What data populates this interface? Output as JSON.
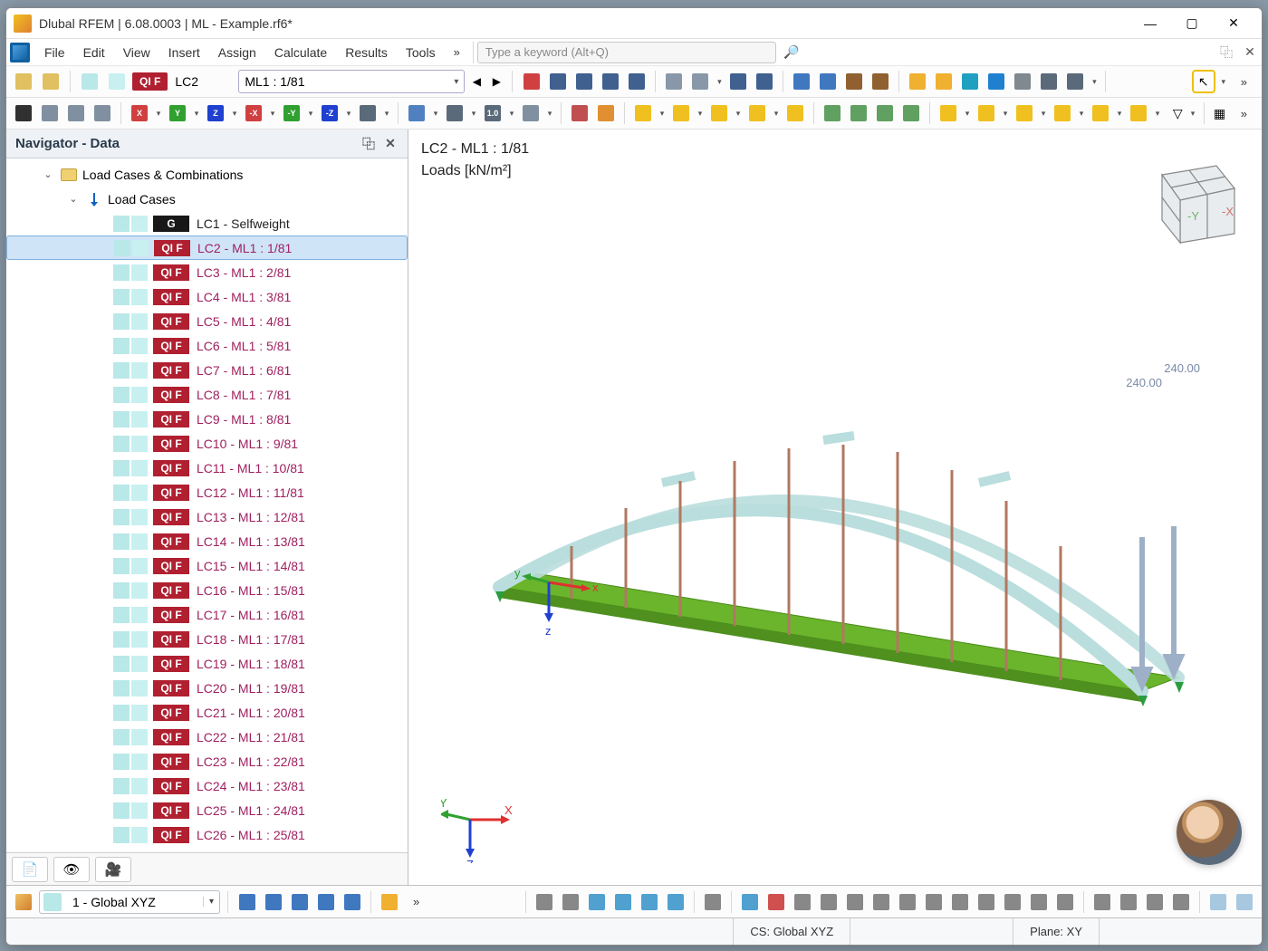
{
  "window": {
    "title": "Dlubal RFEM | 6.08.0003 | ML - Example.rf6*"
  },
  "menu": {
    "items": [
      "File",
      "Edit",
      "View",
      "Insert",
      "Assign",
      "Calculate",
      "Results",
      "Tools"
    ],
    "more": "»",
    "search_placeholder": "Type a keyword (Alt+Q)"
  },
  "toolbar1": {
    "lc_badge": "QI F",
    "lc_code": "LC2",
    "lc_name": "ML1 : 1/81"
  },
  "navigator": {
    "title": "Navigator - Data",
    "root": "Load Cases & Combinations",
    "sub": "Load Cases",
    "items": [
      {
        "badge": "G",
        "badge_class": "g",
        "label": "LC1 - Selfweight",
        "label_class": "g",
        "selected": false
      },
      {
        "badge": "QI F",
        "badge_class": "qi",
        "label": "LC2 - ML1 : 1/81",
        "label_class": "",
        "selected": true
      },
      {
        "badge": "QI F",
        "badge_class": "qi",
        "label": "LC3 - ML1 : 2/81",
        "label_class": "",
        "selected": false
      },
      {
        "badge": "QI F",
        "badge_class": "qi",
        "label": "LC4 - ML1 : 3/81",
        "label_class": "",
        "selected": false
      },
      {
        "badge": "QI F",
        "badge_class": "qi",
        "label": "LC5 - ML1 : 4/81",
        "label_class": "",
        "selected": false
      },
      {
        "badge": "QI F",
        "badge_class": "qi",
        "label": "LC6 - ML1 : 5/81",
        "label_class": "",
        "selected": false
      },
      {
        "badge": "QI F",
        "badge_class": "qi",
        "label": "LC7 - ML1 : 6/81",
        "label_class": "",
        "selected": false
      },
      {
        "badge": "QI F",
        "badge_class": "qi",
        "label": "LC8 - ML1 : 7/81",
        "label_class": "",
        "selected": false
      },
      {
        "badge": "QI F",
        "badge_class": "qi",
        "label": "LC9 - ML1 : 8/81",
        "label_class": "",
        "selected": false
      },
      {
        "badge": "QI F",
        "badge_class": "qi",
        "label": "LC10 - ML1 : 9/81",
        "label_class": "",
        "selected": false
      },
      {
        "badge": "QI F",
        "badge_class": "qi",
        "label": "LC11 - ML1 : 10/81",
        "label_class": "",
        "selected": false
      },
      {
        "badge": "QI F",
        "badge_class": "qi",
        "label": "LC12 - ML1 : 11/81",
        "label_class": "",
        "selected": false
      },
      {
        "badge": "QI F",
        "badge_class": "qi",
        "label": "LC13 - ML1 : 12/81",
        "label_class": "",
        "selected": false
      },
      {
        "badge": "QI F",
        "badge_class": "qi",
        "label": "LC14 - ML1 : 13/81",
        "label_class": "",
        "selected": false
      },
      {
        "badge": "QI F",
        "badge_class": "qi",
        "label": "LC15 - ML1 : 14/81",
        "label_class": "",
        "selected": false
      },
      {
        "badge": "QI F",
        "badge_class": "qi",
        "label": "LC16 - ML1 : 15/81",
        "label_class": "",
        "selected": false
      },
      {
        "badge": "QI F",
        "badge_class": "qi",
        "label": "LC17 - ML1 : 16/81",
        "label_class": "",
        "selected": false
      },
      {
        "badge": "QI F",
        "badge_class": "qi",
        "label": "LC18 - ML1 : 17/81",
        "label_class": "",
        "selected": false
      },
      {
        "badge": "QI F",
        "badge_class": "qi",
        "label": "LC19 - ML1 : 18/81",
        "label_class": "",
        "selected": false
      },
      {
        "badge": "QI F",
        "badge_class": "qi",
        "label": "LC20 - ML1 : 19/81",
        "label_class": "",
        "selected": false
      },
      {
        "badge": "QI F",
        "badge_class": "qi",
        "label": "LC21 - ML1 : 20/81",
        "label_class": "",
        "selected": false
      },
      {
        "badge": "QI F",
        "badge_class": "qi",
        "label": "LC22 - ML1 : 21/81",
        "label_class": "",
        "selected": false
      },
      {
        "badge": "QI F",
        "badge_class": "qi",
        "label": "LC23 - ML1 : 22/81",
        "label_class": "",
        "selected": false
      },
      {
        "badge": "QI F",
        "badge_class": "qi",
        "label": "LC24 - ML1 : 23/81",
        "label_class": "",
        "selected": false
      },
      {
        "badge": "QI F",
        "badge_class": "qi",
        "label": "LC25 - ML1 : 24/81",
        "label_class": "",
        "selected": false
      },
      {
        "badge": "QI F",
        "badge_class": "qi",
        "label": "LC26 - ML1 : 25/81",
        "label_class": "",
        "selected": false
      }
    ]
  },
  "viewport": {
    "header1": "LC2 - ML1 : 1/81",
    "header2": "Loads [kN/m²]",
    "load_value1": "240.00",
    "load_value2": "240.00",
    "axes": {
      "x": "X",
      "y": "Y",
      "z": "Z"
    },
    "local_axes": {
      "x": "x",
      "y": "y",
      "z": "z"
    },
    "cube_axes": {
      "x": "-X",
      "y": "-Y"
    },
    "bridge": {
      "deck_color": "#6ab52b",
      "arch_color": "#b9dedd",
      "hanger_color": "#b07860",
      "support_color": "#2a9d3e",
      "load_arrow_color": "#9eb0c8"
    }
  },
  "bottom": {
    "workplane": "1 - Global XYZ"
  },
  "status": {
    "cs": "CS: Global XYZ",
    "plane": "Plane: XY"
  },
  "colors": {
    "qi_badge": "#b02030",
    "g_badge": "#181818",
    "lc_text": "#a02060"
  }
}
